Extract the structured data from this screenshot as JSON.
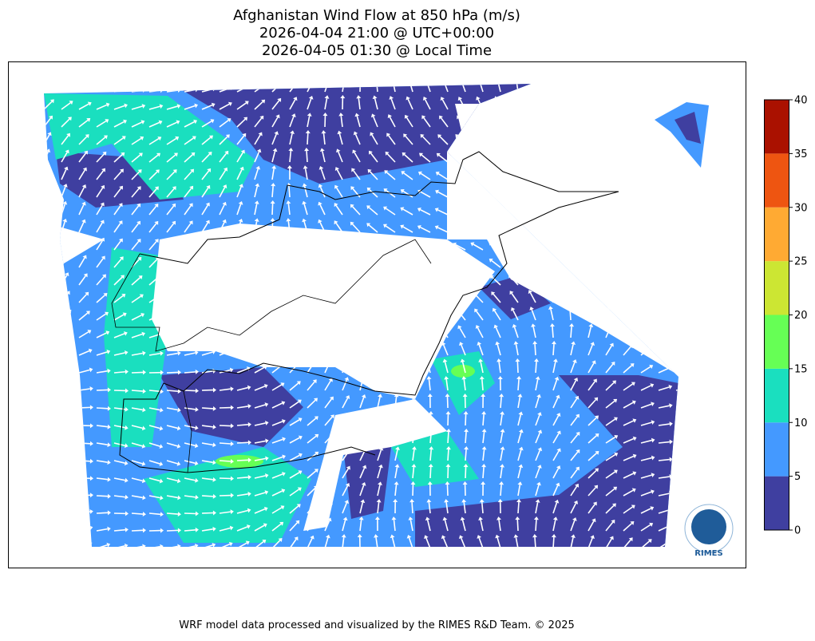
{
  "title": [
    "Afghanistan Wind Flow at 850 hPa (m/s)",
    "2026-04-04 21:00 @ UTC+00:00",
    "2026-04-05 01:30 @ Local Time"
  ],
  "colorbar": {
    "range": [
      0,
      40
    ],
    "ticks": [
      0,
      5,
      10,
      15,
      20,
      25,
      30,
      35,
      40
    ],
    "colors": [
      "#3f3fa0",
      "#4499ff",
      "#1adfbf",
      "#66ff55",
      "#cce633",
      "#ffaa33",
      "#ee5511",
      "#aa1100"
    ]
  },
  "logo": "RIMES",
  "footer": "WRF model data processed and visualized by the RIMES R&D Team. © 2025"
}
